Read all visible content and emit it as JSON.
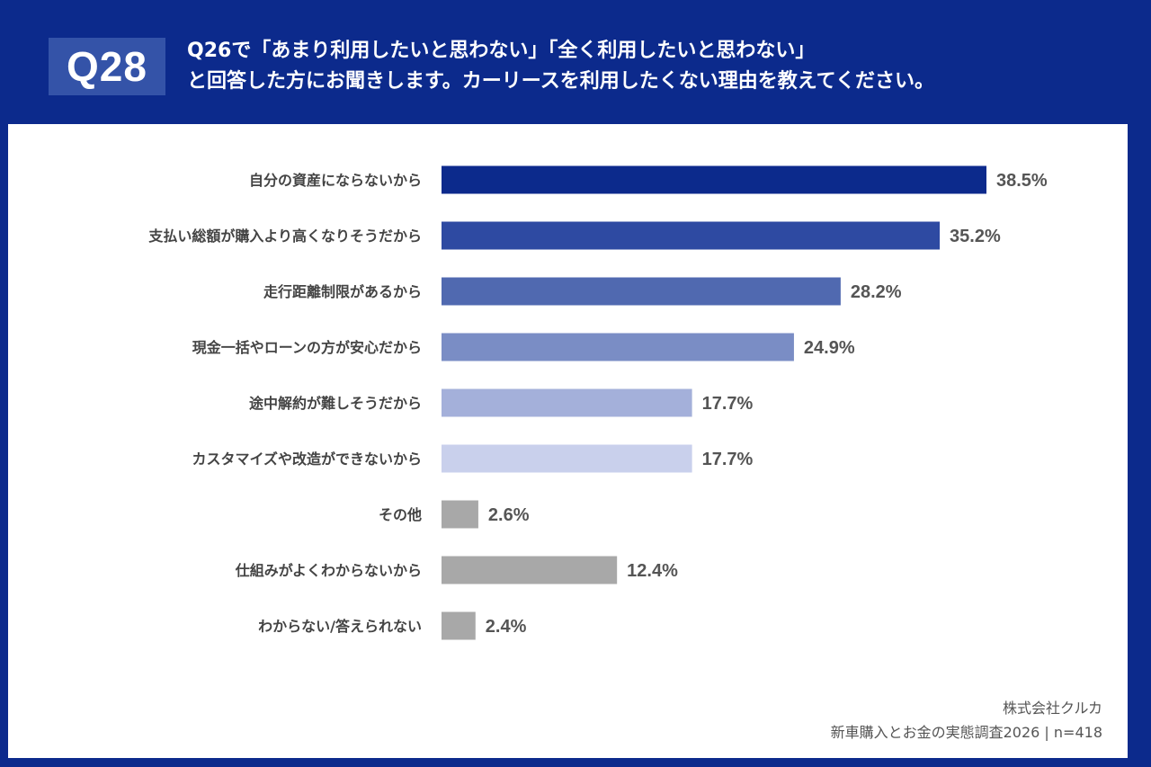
{
  "question": {
    "number": "Q28",
    "title_line1": "Q26で「あまり利用したいと思わない」「全く利用したいと思わない」",
    "title_line2": "と回答した方にお聞きします。カーリースを利用したくない理由を教えてください。"
  },
  "chart_data": {
    "type": "bar",
    "orientation": "horizontal",
    "categories": [
      "自分の資産にならないから",
      "支払い総額が購入より高くなりそうだから",
      "走行距離制限があるから",
      "現金一括やローンの方が安心だから",
      "途中解約が難しそうだから",
      "カスタマイズや改造ができないから",
      "その他",
      "仕組みがよくわからないから",
      "わからない/答えられない"
    ],
    "values": [
      38.5,
      35.2,
      28.2,
      24.9,
      17.7,
      17.7,
      2.6,
      12.4,
      2.4
    ],
    "value_labels": [
      "38.5%",
      "35.2%",
      "28.2%",
      "24.9%",
      "17.7%",
      "17.7%",
      "2.6%",
      "12.4%",
      "2.4%"
    ],
    "colors": [
      "#0c2a8c",
      "#2e4aa2",
      "#5069b0",
      "#7a8dc5",
      "#a4b0da",
      "#c9d0ec",
      "#a8a8a8",
      "#a8a8a8",
      "#a8a8a8"
    ],
    "xlim": [
      0,
      40
    ],
    "grid": false
  },
  "footer": {
    "company": "株式会社クルカ",
    "survey": "新車購入とお金の実態調査2026 | n=418"
  }
}
